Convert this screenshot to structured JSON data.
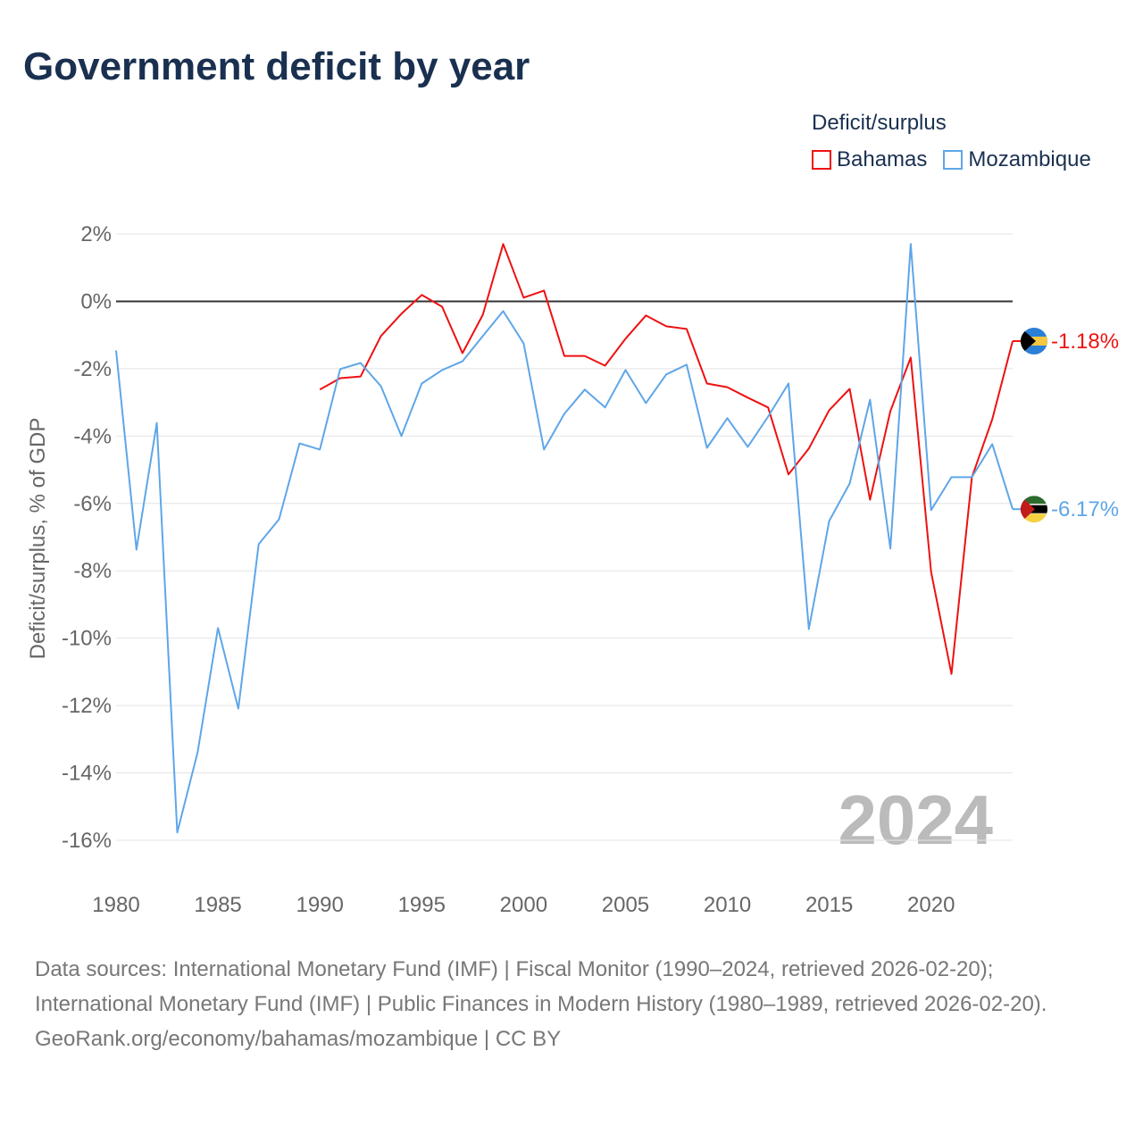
{
  "title": "Government deficit by year",
  "legend_title": "Deficit/surplus",
  "source_lines": [
    "Data sources: International Monetary Fund (IMF) | Fiscal Monitor (1990–2024, retrieved 2026-02-20); International Monetary Fund (IMF) | Public Finances in Modern History (1980–1989, retrieved 2026-02-20).",
    "GeoRank.org/economy/bahamas/mozambique | CC BY"
  ],
  "chart_data": {
    "type": "line",
    "title": "Government deficit by year",
    "xlabel": "",
    "ylabel": "Deficit/surplus, % of GDP",
    "xlim": [
      1980,
      2024
    ],
    "ylim": [
      -16,
      2
    ],
    "yticks": [
      2,
      0,
      -2,
      -4,
      -6,
      -8,
      -10,
      -12,
      -14,
      -16
    ],
    "ytick_labels": [
      "2%",
      "0%",
      "-2%",
      "-4%",
      "-6%",
      "-8%",
      "-10%",
      "-12%",
      "-14%",
      "-16%"
    ],
    "xticks": [
      1980,
      1985,
      1990,
      1995,
      2000,
      2005,
      2010,
      2015,
      2020
    ],
    "xtick_labels": [
      "1980",
      "1985",
      "1990",
      "1995",
      "2000",
      "2005",
      "2010",
      "2015",
      "2020"
    ],
    "year_watermark": "2024",
    "legend_position": "top-right",
    "series": [
      {
        "name": "Bahamas",
        "color": "#ee1111",
        "end_label": "-1.18%",
        "start_year": 1990,
        "values": [
          -2.62,
          -2.28,
          -2.23,
          -1.03,
          -0.37,
          0.19,
          -0.16,
          -1.54,
          -0.4,
          1.7,
          0.11,
          0.32,
          -1.62,
          -1.62,
          -1.91,
          -1.11,
          -0.42,
          -0.74,
          -0.82,
          -2.44,
          -2.55,
          -2.86,
          -3.15,
          -5.14,
          -4.37,
          -3.23,
          -2.6,
          -5.89,
          -3.26,
          -1.67,
          -8.03,
          -11.06,
          -5.22,
          -3.5,
          -1.18
        ]
      },
      {
        "name": "Mozambique",
        "color": "#5ea6e8",
        "end_label": "-6.17%",
        "start_year": 1980,
        "values": [
          -1.46,
          -7.37,
          -3.61,
          -15.77,
          -13.39,
          -9.7,
          -12.09,
          -7.21,
          -6.47,
          -4.22,
          -4.4,
          -2.01,
          -1.83,
          -2.52,
          -4.0,
          -2.44,
          -2.04,
          -1.78,
          -1.03,
          -0.29,
          -1.25,
          -4.4,
          -3.34,
          -2.62,
          -3.15,
          -2.04,
          -3.02,
          -2.17,
          -1.88,
          -4.35,
          -3.47,
          -4.32,
          -3.42,
          -2.44,
          -9.73,
          -6.52,
          -5.41,
          -2.92,
          -7.34,
          1.7,
          -6.2,
          -5.22,
          -5.22,
          -4.24,
          -6.17
        ]
      }
    ]
  }
}
